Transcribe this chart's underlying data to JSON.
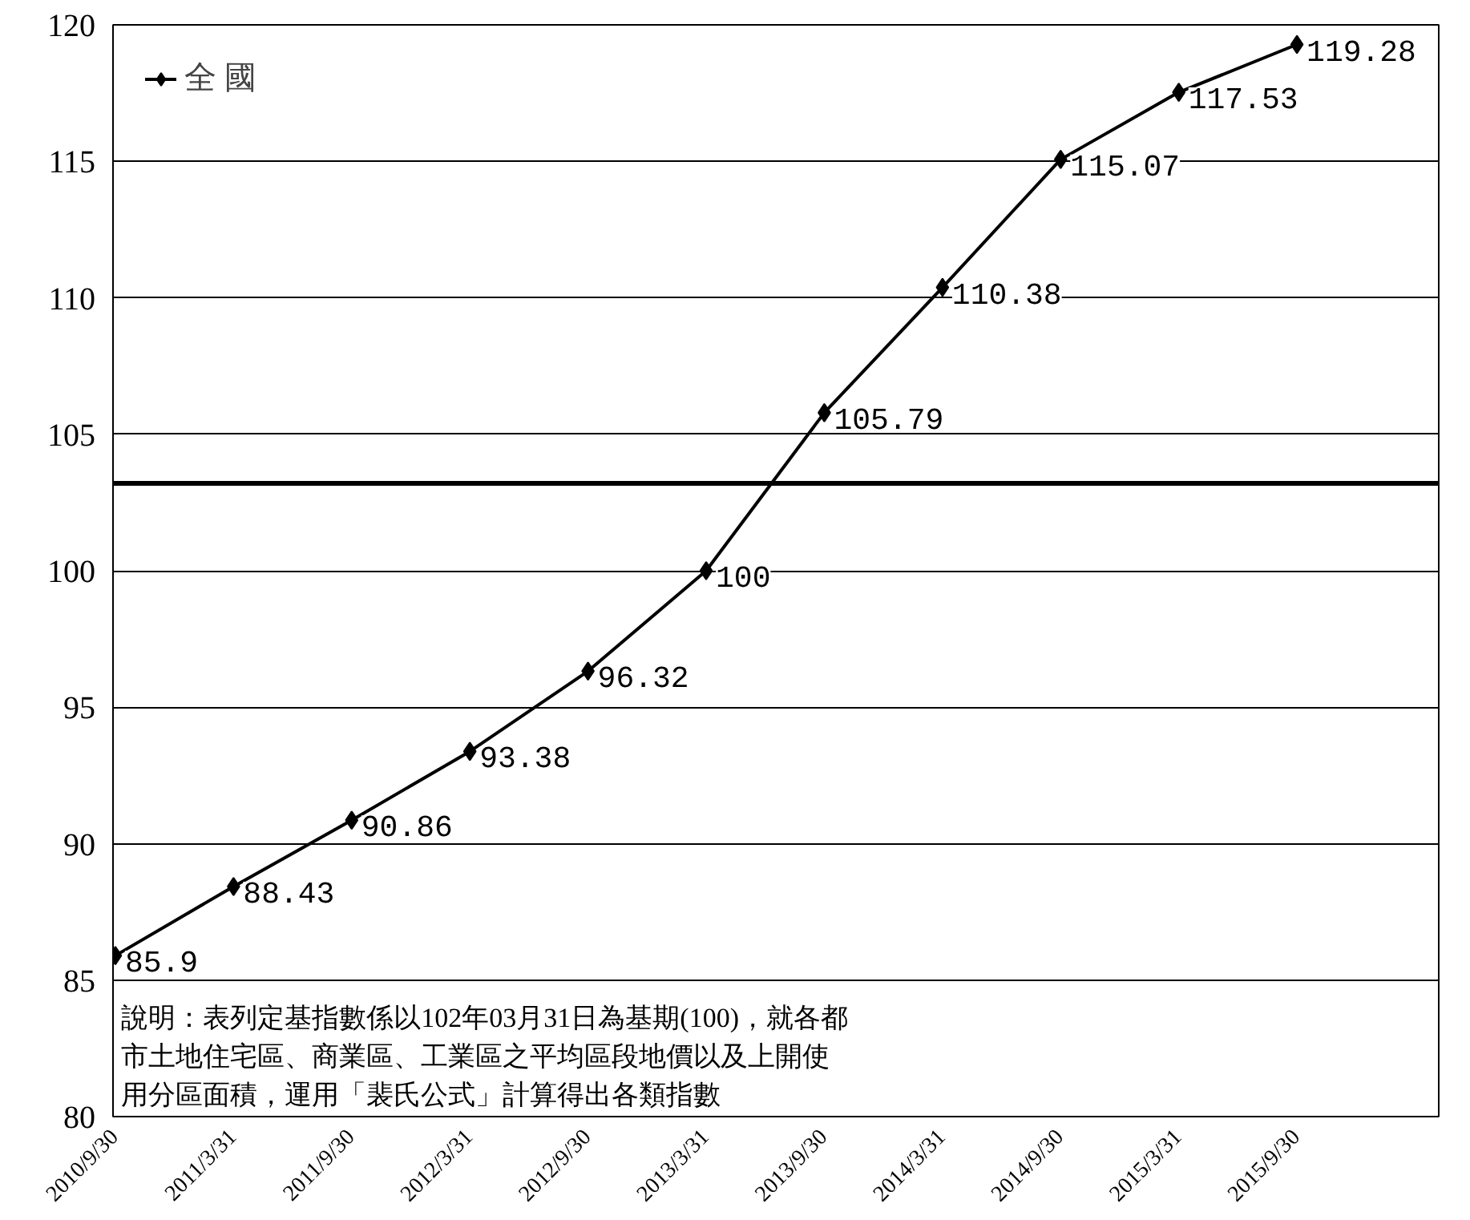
{
  "chart_data": {
    "type": "line",
    "categories": [
      "2010/9/30",
      "2011/3/31",
      "2011/9/30",
      "2012/3/31",
      "2012/9/30",
      "2013/3/31",
      "2013/9/30",
      "2014/3/31",
      "2014/9/30",
      "2015/3/31",
      "2015/9/30"
    ],
    "series": [
      {
        "name": "全 國",
        "color": "#000000",
        "values": [
          85.9,
          88.43,
          90.86,
          93.38,
          96.32,
          100,
          105.79,
          110.38,
          115.07,
          117.53,
          119.28
        ]
      }
    ],
    "ylim": [
      80,
      120
    ],
    "yticks": [
      80,
      85,
      90,
      95,
      100,
      105,
      110,
      115,
      120
    ],
    "grid": "y",
    "legend": "top left",
    "marker": "diamond",
    "line_style": "solid",
    "data_labels": true,
    "ref_lines": [
      {
        "axis": "y",
        "value": 103.2,
        "color": "#000000"
      }
    ],
    "annotations": [
      "說明：表列定基指數係以102年03月31日為基期(100)，就各都",
      "市土地住宅區、商業區、工業區之平均區段地價以及上開使",
      "用分區面積，運用「裴氏公式」計算得出各類指數"
    ]
  }
}
